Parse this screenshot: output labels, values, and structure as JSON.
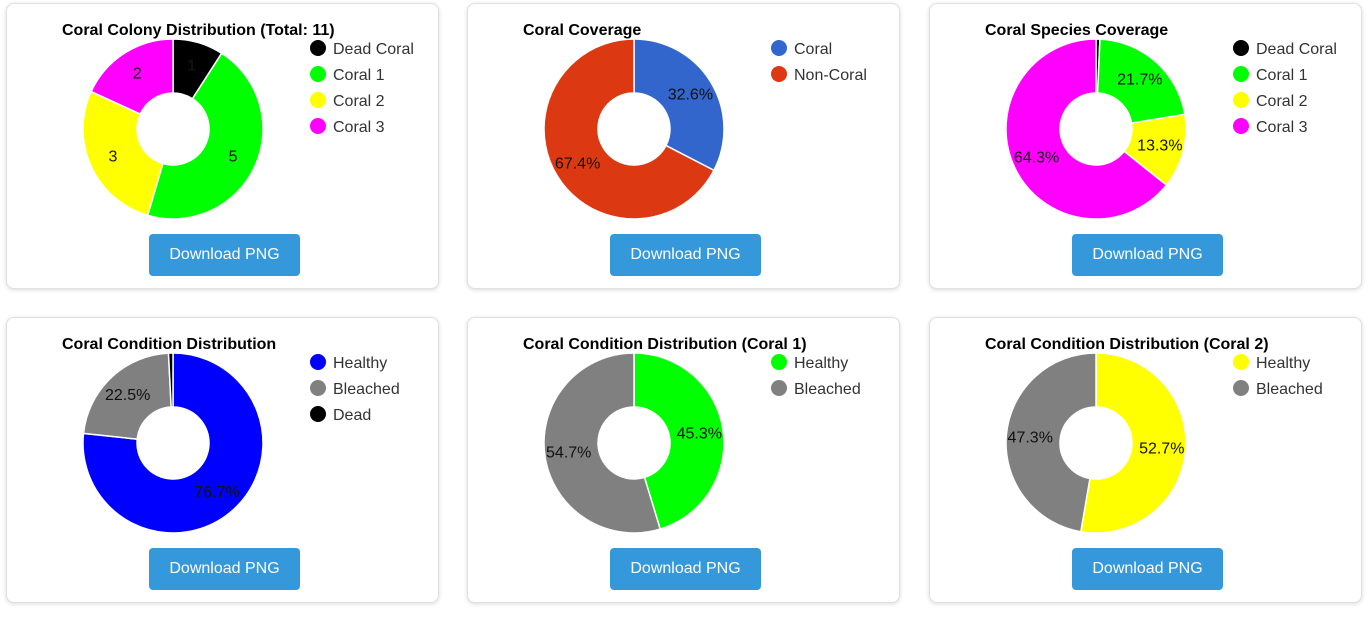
{
  "download_label": "Download PNG",
  "chart_data": [
    {
      "type": "pie",
      "title": "Coral Colony Distribution (Total: 11)",
      "categories": [
        "Dead Coral",
        "Coral 1",
        "Coral 2",
        "Coral 3"
      ],
      "values": [
        1,
        5,
        3,
        2
      ],
      "colors": [
        "#000000",
        "#00ff00",
        "#ffff00",
        "#ff00ff"
      ],
      "labels": [
        "1",
        "5",
        "3",
        "2"
      ],
      "label_colors": [
        "#ff0000",
        "#111111",
        "#111111",
        "#111111"
      ],
      "legend_position": "right"
    },
    {
      "type": "pie",
      "title": "Coral Coverage",
      "categories": [
        "Coral",
        "Non-Coral"
      ],
      "values": [
        32.6,
        67.4
      ],
      "colors": [
        "#3366cc",
        "#dc3912"
      ],
      "labels": [
        "32.6%",
        "67.4%"
      ],
      "legend_position": "right"
    },
    {
      "type": "pie",
      "title": "Coral Species Coverage",
      "categories": [
        "Dead Coral",
        "Coral 1",
        "Coral 2",
        "Coral 3"
      ],
      "values": [
        0.7,
        21.7,
        13.3,
        64.3
      ],
      "colors": [
        "#000000",
        "#00ff00",
        "#ffff00",
        "#ff00ff"
      ],
      "labels": [
        "",
        "21.7%",
        "13.3%",
        "64.3%"
      ],
      "legend_position": "right"
    },
    {
      "type": "pie",
      "title": "Coral Condition Distribution",
      "categories": [
        "Healthy",
        "Bleached",
        "Dead"
      ],
      "values": [
        76.7,
        22.5,
        0.8
      ],
      "colors": [
        "#0000ff",
        "#808080",
        "#000000"
      ],
      "labels": [
        "76.7%",
        "22.5%",
        ""
      ],
      "legend_position": "right"
    },
    {
      "type": "pie",
      "title": "Coral Condition Distribution (Coral 1)",
      "categories": [
        "Healthy",
        "Bleached"
      ],
      "values": [
        45.3,
        54.7
      ],
      "colors": [
        "#00ff00",
        "#808080"
      ],
      "labels": [
        "45.3%",
        "54.7%"
      ],
      "legend_position": "right"
    },
    {
      "type": "pie",
      "title": "Coral Condition Distribution (Coral 2)",
      "categories": [
        "Healthy",
        "Bleached"
      ],
      "values": [
        52.7,
        47.3
      ],
      "colors": [
        "#ffff00",
        "#808080"
      ],
      "labels": [
        "52.7%",
        "47.3%"
      ],
      "legend_position": "right"
    }
  ]
}
